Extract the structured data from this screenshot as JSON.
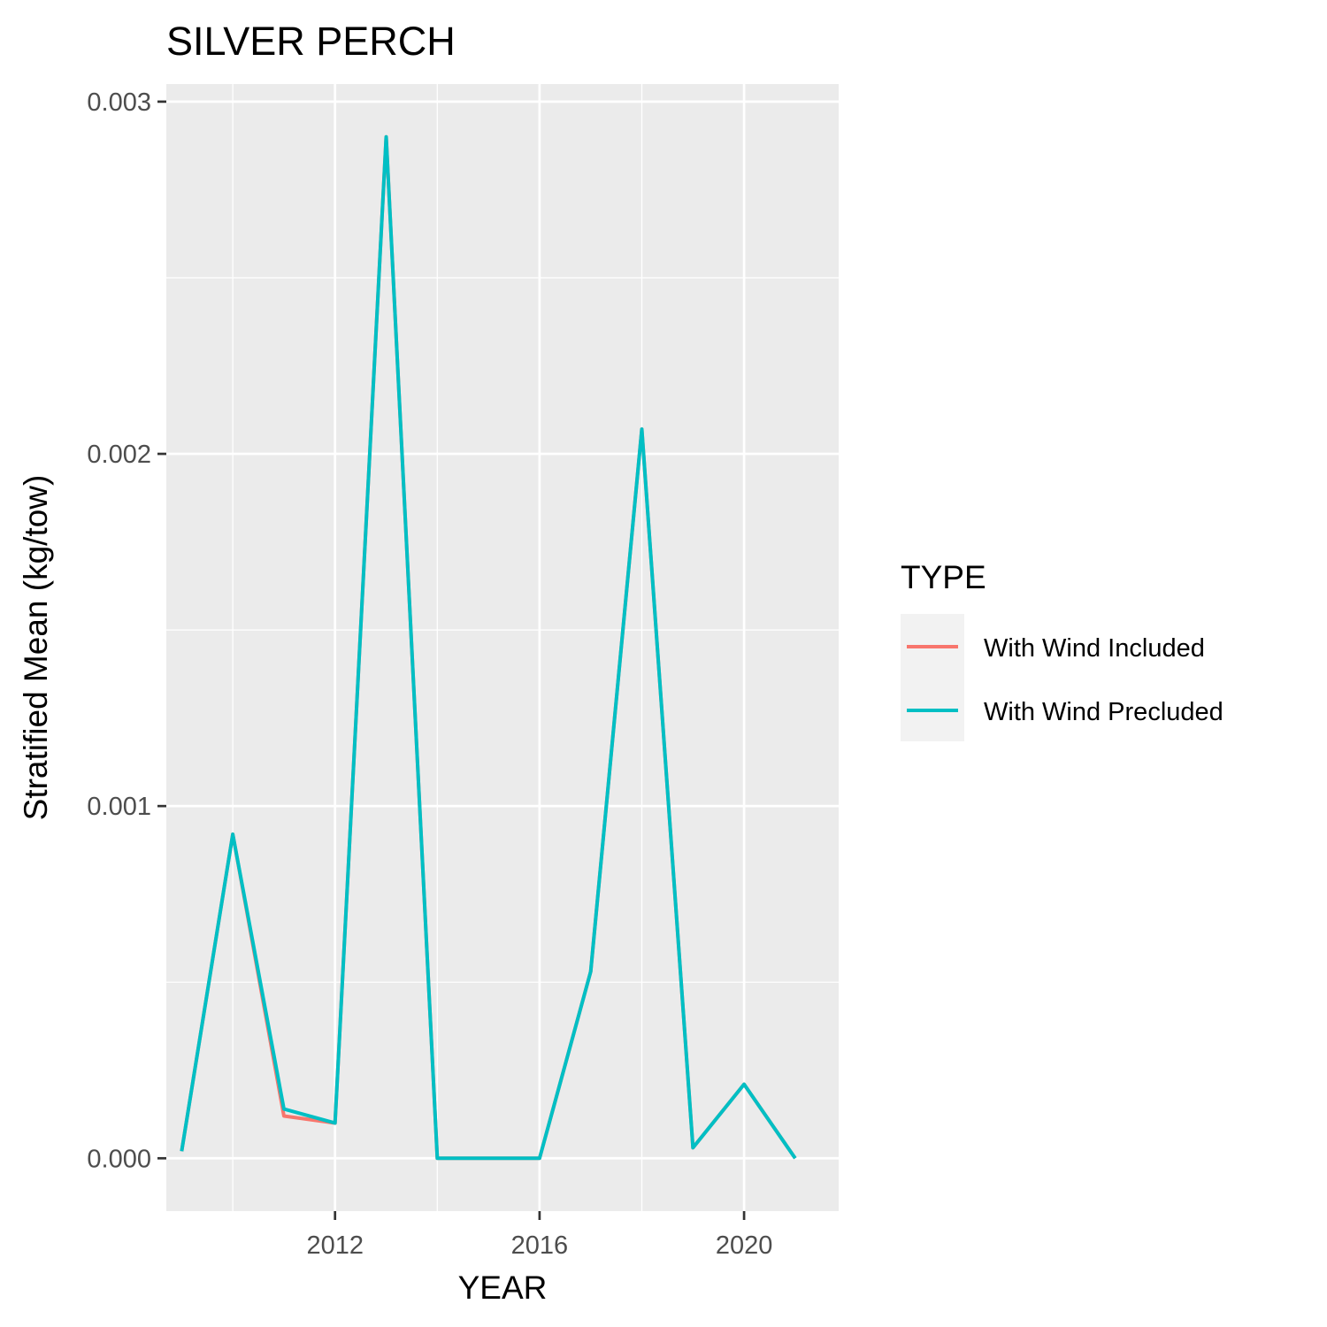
{
  "chart_data": {
    "type": "line",
    "title": "SILVER PERCH",
    "xlabel": "YEAR",
    "ylabel": "Stratified Mean (kg/tow)",
    "xlim": [
      2008.7,
      2021.85
    ],
    "ylim": [
      -0.00015,
      0.00305
    ],
    "x_ticks": [
      2012,
      2016,
      2020
    ],
    "x_tick_labels": [
      "2012",
      "2016",
      "2020"
    ],
    "y_ticks": [
      0,
      0.001,
      0.002,
      0.003
    ],
    "y_tick_labels": [
      "0.000",
      "0.001",
      "0.002",
      "0.003"
    ],
    "x_minor_ticks": [
      2010,
      2014,
      2018
    ],
    "y_minor_ticks": [
      0.0005,
      0.0015,
      0.0025
    ],
    "x": [
      2009,
      2010,
      2011,
      2012,
      2013,
      2014,
      2015,
      2016,
      2017,
      2018,
      2019,
      2020,
      2021
    ],
    "series": [
      {
        "name": "With Wind Included",
        "color": "#F8766D",
        "values": [
          2e-05,
          0.00092,
          0.00012,
          0.0001,
          0.0029,
          0.0,
          0.0,
          0.0,
          0.00053,
          0.00207,
          3e-05,
          0.00021,
          0.0
        ]
      },
      {
        "name": "With Wind Precluded",
        "color": "#00BFC4",
        "values": [
          2e-05,
          0.00092,
          0.00014,
          0.0001,
          0.0029,
          0.0,
          0.0,
          0.0,
          0.00053,
          0.00207,
          3e-05,
          0.00021,
          0.0
        ]
      }
    ],
    "legend": {
      "title": "TYPE",
      "position": "right"
    },
    "grid": true,
    "panel_background": "#EBEBEB"
  }
}
